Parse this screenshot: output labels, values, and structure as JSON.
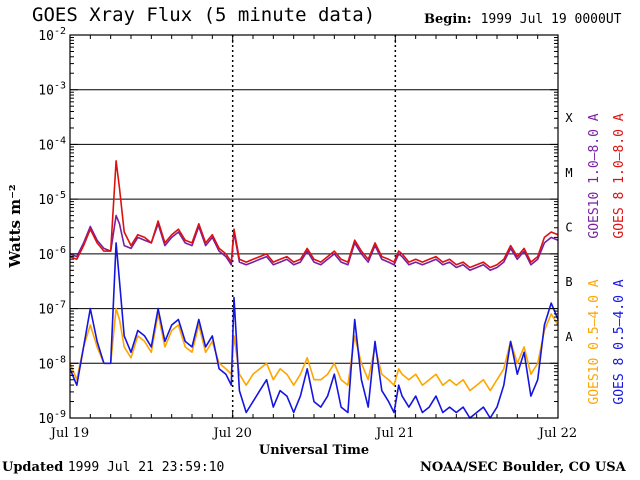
{
  "header": {
    "title": "GOES Xray Flux (5 minute data)",
    "begin_label": "Begin:",
    "begin_value": "1999 Jul 19 0000UT"
  },
  "footer": {
    "updated_label": "Updated",
    "updated_value": "1999 Jul 21 23:59:10",
    "credit": "NOAA/SEC Boulder, CO USA"
  },
  "chart_data": {
    "type": "line",
    "title": "GOES Xray Flux (5 minute data)",
    "xlabel": "Universal Time",
    "ylabel": "Watts m⁻²",
    "yscale": "log",
    "ylim": [
      1e-09,
      0.01
    ],
    "xlim": [
      0,
      72
    ],
    "x_ticks": [
      {
        "x": 0,
        "label": "Jul 19"
      },
      {
        "x": 24,
        "label": "Jul 20"
      },
      {
        "x": 48,
        "label": "Jul 21"
      },
      {
        "x": 72,
        "label": "Jul 22"
      }
    ],
    "y_ticks": [
      {
        "exp": -2,
        "label": "10",
        "sup": "-2"
      },
      {
        "exp": -3,
        "label": "10",
        "sup": "-3"
      },
      {
        "exp": -4,
        "label": "10",
        "sup": "-4"
      },
      {
        "exp": -5,
        "label": "10",
        "sup": "-5"
      },
      {
        "exp": -6,
        "label": "10",
        "sup": "-6"
      },
      {
        "exp": -7,
        "label": "10",
        "sup": "-7"
      },
      {
        "exp": -8,
        "label": "10",
        "sup": "-8"
      },
      {
        "exp": -9,
        "label": "10",
        "sup": "-9"
      }
    ],
    "class_labels": [
      {
        "label": "X",
        "exp": -3.5
      },
      {
        "label": "M",
        "exp": -4.5
      },
      {
        "label": "C",
        "exp": -5.5
      },
      {
        "label": "B",
        "exp": -6.5
      },
      {
        "label": "A",
        "exp": -7.5
      }
    ],
    "grid_y": [
      -3,
      -4,
      -5,
      -6,
      -7,
      -8
    ],
    "day_dividers": [
      24,
      48
    ],
    "legend_placement": "right",
    "series": [
      {
        "name": "GOES10 1.0–8.0 A",
        "color": "#7a1fa2",
        "x": [
          0,
          1,
          2,
          3,
          4,
          5,
          6,
          6.8,
          7.3,
          8,
          9,
          10,
          11,
          12,
          13,
          14,
          15,
          16,
          17,
          18,
          19,
          20,
          21,
          22,
          23,
          23.8,
          24.2,
          25,
          26,
          27,
          28,
          29,
          30,
          31,
          32,
          33,
          34,
          35,
          36,
          37,
          38,
          39,
          40,
          41,
          42,
          43,
          44,
          45,
          46,
          47,
          47.8,
          48.5,
          49,
          50,
          51,
          52,
          53,
          54,
          55,
          56,
          57,
          58,
          59,
          60,
          61,
          62,
          63,
          64,
          65,
          66,
          67,
          68,
          69,
          70,
          71,
          72
        ],
        "y": [
          -6.0,
          -6.05,
          -5.8,
          -5.5,
          -5.75,
          -5.9,
          -5.95,
          -5.3,
          -5.45,
          -5.85,
          -5.9,
          -5.7,
          -5.75,
          -5.8,
          -5.45,
          -5.85,
          -5.7,
          -5.6,
          -5.8,
          -5.85,
          -5.5,
          -5.85,
          -5.7,
          -5.95,
          -6.05,
          -6.2,
          -5.6,
          -6.15,
          -6.2,
          -6.15,
          -6.1,
          -6.05,
          -6.2,
          -6.15,
          -6.1,
          -6.2,
          -6.15,
          -5.95,
          -6.15,
          -6.2,
          -6.1,
          -6.0,
          -6.15,
          -6.2,
          -5.8,
          -6.0,
          -6.15,
          -5.85,
          -6.1,
          -6.15,
          -6.2,
          -6.0,
          -6.05,
          -6.2,
          -6.15,
          -6.2,
          -6.15,
          -6.1,
          -6.2,
          -6.15,
          -6.25,
          -6.2,
          -6.3,
          -6.25,
          -6.2,
          -6.3,
          -6.25,
          -6.15,
          -5.9,
          -6.1,
          -5.95,
          -6.2,
          -6.1,
          -5.8,
          -5.7,
          -5.75
        ]
      },
      {
        "name": "GOES 8 1.0–8.0 A",
        "color": "#dd1111",
        "x": [
          0,
          1,
          2,
          3,
          4,
          5,
          6,
          6.8,
          7.3,
          8,
          9,
          10,
          11,
          12,
          13,
          14,
          15,
          16,
          17,
          18,
          19,
          20,
          21,
          22,
          23,
          23.8,
          24.2,
          25,
          26,
          27,
          28,
          29,
          30,
          31,
          32,
          33,
          34,
          35,
          36,
          37,
          38,
          39,
          40,
          41,
          42,
          43,
          44,
          45,
          46,
          47,
          47.8,
          48.5,
          49,
          50,
          51,
          52,
          53,
          54,
          55,
          56,
          57,
          58,
          59,
          60,
          61,
          62,
          63,
          64,
          65,
          66,
          67,
          68,
          69,
          70,
          71,
          72
        ],
        "y": [
          -6.05,
          -6.1,
          -5.85,
          -5.55,
          -5.8,
          -5.95,
          -5.95,
          -4.3,
          -4.8,
          -5.6,
          -5.85,
          -5.65,
          -5.7,
          -5.8,
          -5.4,
          -5.8,
          -5.65,
          -5.55,
          -5.75,
          -5.8,
          -5.45,
          -5.8,
          -5.65,
          -5.9,
          -6.0,
          -6.15,
          -5.55,
          -6.1,
          -6.15,
          -6.1,
          -6.05,
          -6.0,
          -6.15,
          -6.1,
          -6.05,
          -6.15,
          -6.1,
          -5.9,
          -6.1,
          -6.15,
          -6.05,
          -5.95,
          -6.1,
          -6.15,
          -5.75,
          -5.95,
          -6.1,
          -5.8,
          -6.05,
          -6.1,
          -6.15,
          -5.95,
          -6.0,
          -6.15,
          -6.1,
          -6.15,
          -6.1,
          -6.05,
          -6.15,
          -6.1,
          -6.2,
          -6.15,
          -6.25,
          -6.2,
          -6.15,
          -6.25,
          -6.2,
          -6.1,
          -5.85,
          -6.05,
          -5.9,
          -6.15,
          -6.05,
          -5.7,
          -5.6,
          -5.65
        ]
      },
      {
        "name": "GOES10 0.5–4.0 A",
        "color": "#ffa500",
        "x": [
          0,
          1,
          2,
          3,
          4,
          5,
          6,
          6.8,
          7.3,
          8,
          9,
          10,
          11,
          12,
          13,
          14,
          15,
          16,
          17,
          18,
          19,
          20,
          21,
          22,
          23,
          23.8,
          24.2,
          25,
          26,
          27,
          28,
          29,
          30,
          31,
          32,
          33,
          34,
          35,
          36,
          37,
          38,
          39,
          40,
          41,
          42,
          43,
          44,
          45,
          46,
          47,
          47.8,
          48.5,
          49,
          50,
          51,
          52,
          53,
          54,
          55,
          56,
          57,
          58,
          59,
          60,
          61,
          62,
          63,
          64,
          65,
          66,
          67,
          68,
          69,
          70,
          71,
          72
        ],
        "y": [
          -8.0,
          -8.3,
          -7.7,
          -7.3,
          -7.7,
          -8.0,
          -8.0,
          -7.0,
          -7.2,
          -7.7,
          -7.9,
          -7.5,
          -7.6,
          -7.8,
          -7.1,
          -7.7,
          -7.4,
          -7.3,
          -7.7,
          -7.8,
          -7.3,
          -7.8,
          -7.6,
          -8.0,
          -8.1,
          -8.2,
          -7.5,
          -8.2,
          -8.4,
          -8.2,
          -8.1,
          -8.0,
          -8.3,
          -8.1,
          -8.2,
          -8.4,
          -8.2,
          -7.9,
          -8.3,
          -8.3,
          -8.2,
          -8.0,
          -8.3,
          -8.4,
          -7.5,
          -8.0,
          -8.3,
          -7.7,
          -8.2,
          -8.3,
          -8.4,
          -8.1,
          -8.2,
          -8.3,
          -8.2,
          -8.4,
          -8.3,
          -8.2,
          -8.4,
          -8.3,
          -8.4,
          -8.3,
          -8.5,
          -8.4,
          -8.3,
          -8.5,
          -8.3,
          -8.1,
          -7.6,
          -8.0,
          -7.7,
          -8.2,
          -8.0,
          -7.4,
          -7.1,
          -7.3
        ]
      },
      {
        "name": "GOES 8 0.5–4.0 A",
        "color": "#1515e0",
        "x": [
          0,
          1,
          2,
          3,
          4,
          5,
          6,
          6.8,
          7.3,
          8,
          9,
          10,
          11,
          12,
          13,
          14,
          15,
          16,
          17,
          18,
          19,
          20,
          21,
          22,
          23,
          23.8,
          24.2,
          25,
          26,
          27,
          28,
          29,
          30,
          31,
          32,
          33,
          34,
          35,
          36,
          37,
          38,
          39,
          40,
          41,
          42,
          43,
          44,
          45,
          46,
          47,
          47.8,
          48.5,
          49,
          50,
          51,
          52,
          53,
          54,
          55,
          56,
          57,
          58,
          59,
          60,
          61,
          62,
          63,
          64,
          65,
          66,
          67,
          68,
          69,
          70,
          71,
          72
        ],
        "y": [
          -8.1,
          -8.4,
          -7.7,
          -7.0,
          -7.6,
          -8.0,
          -8.0,
          -5.8,
          -6.5,
          -7.5,
          -7.8,
          -7.4,
          -7.5,
          -7.7,
          -7.0,
          -7.6,
          -7.3,
          -7.2,
          -7.6,
          -7.7,
          -7.2,
          -7.7,
          -7.5,
          -8.1,
          -8.2,
          -8.4,
          -6.8,
          -8.5,
          -8.9,
          -8.7,
          -8.5,
          -8.3,
          -8.8,
          -8.5,
          -8.6,
          -8.9,
          -8.6,
          -8.1,
          -8.7,
          -8.8,
          -8.6,
          -8.2,
          -8.8,
          -8.9,
          -7.2,
          -8.3,
          -8.8,
          -7.6,
          -8.5,
          -8.7,
          -8.9,
          -8.4,
          -8.6,
          -8.8,
          -8.6,
          -8.9,
          -8.8,
          -8.6,
          -8.9,
          -8.8,
          -8.9,
          -8.8,
          -9.0,
          -8.9,
          -8.8,
          -9.0,
          -8.8,
          -8.4,
          -7.6,
          -8.2,
          -7.8,
          -8.6,
          -8.3,
          -7.3,
          -6.9,
          -7.2
        ]
      }
    ]
  }
}
